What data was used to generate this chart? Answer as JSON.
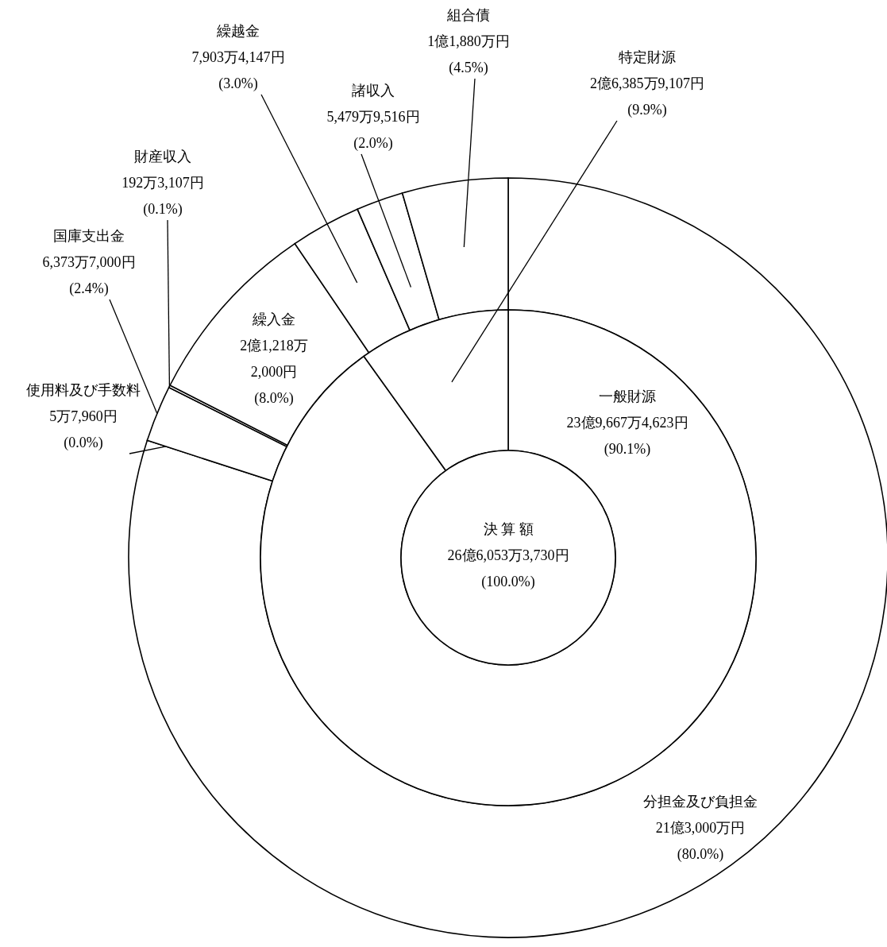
{
  "chart_data": [
    {
      "type": "pie",
      "categories": [
        "決 算 額"
      ],
      "values": [
        100.0
      ],
      "value_labels": [
        "26億6,053万3,730円\n(100.0%)"
      ],
      "color": "#ffffff"
    },
    {
      "type": "donut",
      "categories": [
        "一般財源",
        "特定財源"
      ],
      "values": [
        90.1,
        9.9
      ],
      "value_labels": [
        "23億9,667万4,623円\n(90.1%)",
        "2億6,385万9,107円\n(9.9%)"
      ],
      "color": "#ffffff"
    },
    {
      "type": "donut",
      "categories": [
        "分担金及び負担金",
        "使用料及び手数料",
        "国庫支出金",
        "財産収入",
        "繰入金",
        "繰越金",
        "諸収入",
        "組合債"
      ],
      "values": [
        80.0,
        0.0,
        2.4,
        0.1,
        8.0,
        3.0,
        2.0,
        4.5
      ],
      "value_labels": [
        "21億3,000万円\n(80.0%)",
        "5万7,960円\n(0.0%)",
        "6,373万7,000円\n(2.4%)",
        "192万3,107円\n(0.1%)",
        "2億1,218万\n2,000円\n(8.0%)",
        "7,903万4,147円\n(3.0%)",
        "5,479万9,516円\n(2.0%)",
        "1億1,880万円\n(4.5%)"
      ],
      "color": "#ffffff"
    }
  ]
}
